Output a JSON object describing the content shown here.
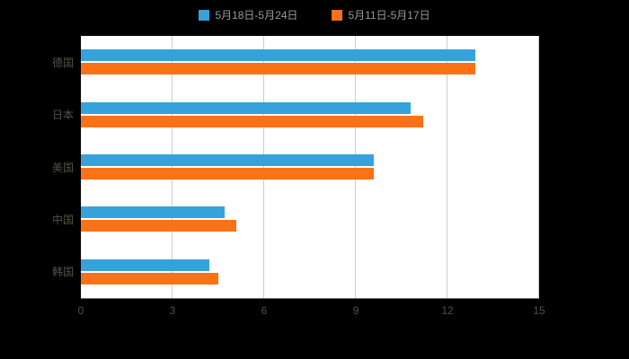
{
  "legend": {
    "items": [
      {
        "label": "5月18日-5月24日",
        "color": "#36A2DB"
      },
      {
        "label": "5月11日-5月17日",
        "color": "#FB7116"
      }
    ]
  },
  "chart_data": {
    "type": "bar",
    "orientation": "horizontal",
    "title": "",
    "xlabel": "",
    "ylabel": "",
    "categories": [
      "德国",
      "日本",
      "美国",
      "中国",
      "韩国"
    ],
    "series": [
      {
        "name": "5月18日-5月24日",
        "color": "#36A2DB",
        "values": [
          12.9,
          10.8,
          9.6,
          4.7,
          4.2
        ]
      },
      {
        "name": "5月11日-5月17日",
        "color": "#FB7116",
        "values": [
          12.9,
          11.2,
          9.6,
          5.1,
          4.5
        ]
      }
    ],
    "xlim": [
      0,
      15
    ],
    "x_ticks": [
      0,
      3,
      6,
      9,
      12,
      15
    ],
    "grid": true,
    "legend_position": "top",
    "plot_background": "#ffffff",
    "page_background": "#000000",
    "gridline_color": "#cccccc"
  }
}
